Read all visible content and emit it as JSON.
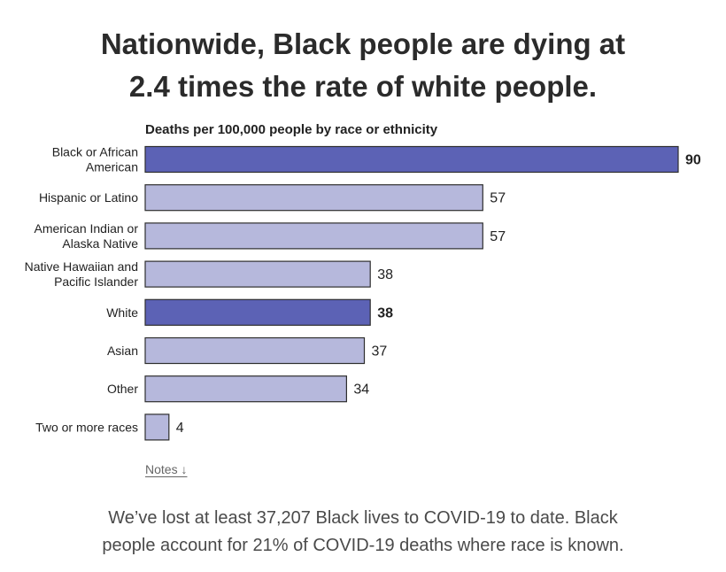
{
  "headline": {
    "line1": "Nationwide, Black people are dying at",
    "line2": "2.4 times the rate of white people."
  },
  "chart_data": {
    "type": "bar",
    "orientation": "horizontal",
    "title": "Deaths per 100,000 people by race or ethnicity",
    "xlabel": "",
    "ylabel": "",
    "xlim": [
      0,
      90
    ],
    "grid": false,
    "legend": "none",
    "categories": [
      [
        "Black or African",
        "American"
      ],
      [
        "Hispanic or Latino"
      ],
      [
        "American Indian or",
        "Alaska Native"
      ],
      [
        "Native Hawaiian and",
        "Pacific Islander"
      ],
      [
        "White"
      ],
      [
        "Asian"
      ],
      [
        "Other"
      ],
      [
        "Two or more races"
      ]
    ],
    "values": [
      90,
      57,
      57,
      38,
      38,
      37,
      34,
      4
    ],
    "value_labels": [
      "90",
      "57",
      "57",
      "38",
      "38",
      "37",
      "34",
      "4"
    ],
    "highlighted": [
      true,
      false,
      false,
      false,
      true,
      false,
      false,
      false
    ],
    "colors": {
      "highlight": "#5c62b5",
      "default": "#b6b8dc",
      "stroke": "#2e2e2e"
    }
  },
  "notes": {
    "label": "Notes ↓"
  },
  "footer": {
    "line1": "We’ve lost at least 37,207 Black lives to COVID-19 to date. Black",
    "line2": "people account for 21% of COVID-19 deaths where race is known."
  }
}
